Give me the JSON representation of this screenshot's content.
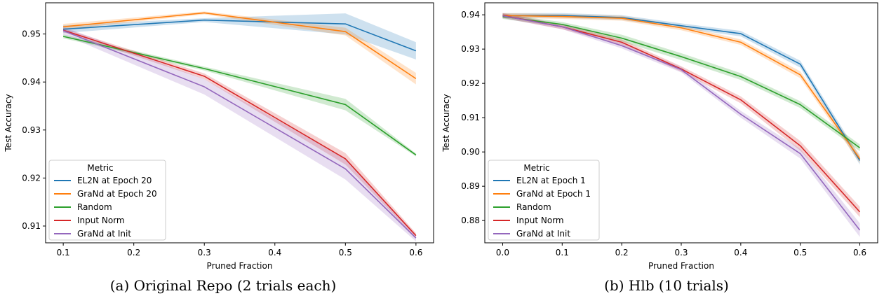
{
  "chart_data": [
    {
      "type": "line",
      "caption": "(a) Original Repo (2 trials each)",
      "xlabel": "Pruned Fraction",
      "ylabel": "Test Accuracy",
      "xlim": [
        0.075,
        0.625
      ],
      "ylim": [
        0.9065,
        0.9565
      ],
      "xticks": [
        0.1,
        0.2,
        0.3,
        0.4,
        0.5,
        0.6
      ],
      "xtick_labels": [
        "0.1",
        "0.2",
        "0.3",
        "0.4",
        "0.5",
        "0.6"
      ],
      "yticks": [
        0.91,
        0.92,
        0.93,
        0.94,
        0.95
      ],
      "ytick_labels": [
        "0.91",
        "0.92",
        "0.93",
        "0.94",
        "0.95"
      ],
      "legend_title": "Metric",
      "legend_position": "lower-left",
      "x": [
        0.1,
        0.3,
        0.5,
        0.6
      ],
      "series": [
        {
          "name": "EL2N at Epoch 20",
          "color": "#1f77b4",
          "values": [
            0.951,
            0.9529,
            0.9521,
            0.9465
          ],
          "band": [
            0.0008,
            0.0004,
            0.0022,
            0.0018
          ]
        },
        {
          "name": "GraNd at Epoch 20",
          "color": "#ff7f0e",
          "values": [
            0.9515,
            0.9544,
            0.9505,
            0.9407
          ],
          "band": [
            0.0006,
            0.0003,
            0.0008,
            0.0012
          ]
        },
        {
          "name": "Random",
          "color": "#2ca02c",
          "values": [
            0.9495,
            0.9428,
            0.9353,
            0.9248
          ],
          "band": [
            0.0004,
            0.0004,
            0.0012,
            0.0003
          ]
        },
        {
          "name": "Input Norm",
          "color": "#d62728",
          "values": [
            0.9508,
            0.9412,
            0.924,
            0.908
          ],
          "band": [
            0.0004,
            0.0006,
            0.0012,
            0.0005
          ]
        },
        {
          "name": "GraNd at Init",
          "color": "#9467bd",
          "values": [
            0.9507,
            0.939,
            0.9219,
            0.9075
          ],
          "band": [
            0.0008,
            0.0016,
            0.0022,
            0.0007
          ]
        }
      ]
    },
    {
      "type": "line",
      "caption": "(b) Hlb (10 trials)",
      "xlabel": "Pruned Fraction",
      "ylabel": "Test Accuracy",
      "xlim": [
        -0.03,
        0.63
      ],
      "ylim": [
        0.8735,
        0.9435
      ],
      "xticks": [
        0.0,
        0.1,
        0.2,
        0.3,
        0.4,
        0.5,
        0.6
      ],
      "xtick_labels": [
        "0.0",
        "0.1",
        "0.2",
        "0.3",
        "0.4",
        "0.5",
        "0.6"
      ],
      "yticks": [
        0.88,
        0.89,
        0.9,
        0.91,
        0.92,
        0.93,
        0.94
      ],
      "ytick_labels": [
        "0.88",
        "0.89",
        "0.90",
        "0.91",
        "0.92",
        "0.93",
        "0.94"
      ],
      "legend_title": "Metric",
      "legend_position": "lower-left",
      "x": [
        0.0,
        0.1,
        0.2,
        0.3,
        0.4,
        0.5,
        0.6
      ],
      "series": [
        {
          "name": "EL2N at Epoch 1",
          "color": "#1f77b4",
          "values": [
            0.9398,
            0.9398,
            0.9392,
            0.9368,
            0.9345,
            0.9256,
            0.8975
          ],
          "band": [
            0.0007,
            0.0007,
            0.0007,
            0.0007,
            0.0008,
            0.001,
            0.0012
          ]
        },
        {
          "name": "GraNd at Epoch 1",
          "color": "#ff7f0e",
          "values": [
            0.9398,
            0.9395,
            0.939,
            0.9362,
            0.932,
            0.9225,
            0.898
          ],
          "band": [
            0.0007,
            0.0007,
            0.0007,
            0.0007,
            0.0008,
            0.001,
            0.0012
          ]
        },
        {
          "name": "Random",
          "color": "#2ca02c",
          "values": [
            0.9395,
            0.9372,
            0.9332,
            0.9278,
            0.922,
            0.9138,
            0.9012
          ],
          "band": [
            0.0007,
            0.0007,
            0.001,
            0.001,
            0.001,
            0.001,
            0.001
          ]
        },
        {
          "name": "Input Norm",
          "color": "#d62728",
          "values": [
            0.9398,
            0.9365,
            0.932,
            0.9242,
            0.9152,
            0.9018,
            0.8825
          ],
          "band": [
            0.0007,
            0.0007,
            0.0008,
            0.0008,
            0.001,
            0.0014,
            0.0015
          ]
        },
        {
          "name": "GraNd at Init",
          "color": "#9467bd",
          "values": [
            0.9397,
            0.9365,
            0.931,
            0.924,
            0.911,
            0.8995,
            0.8772
          ],
          "band": [
            0.0007,
            0.0007,
            0.0008,
            0.0008,
            0.001,
            0.0014,
            0.002
          ]
        }
      ]
    }
  ]
}
